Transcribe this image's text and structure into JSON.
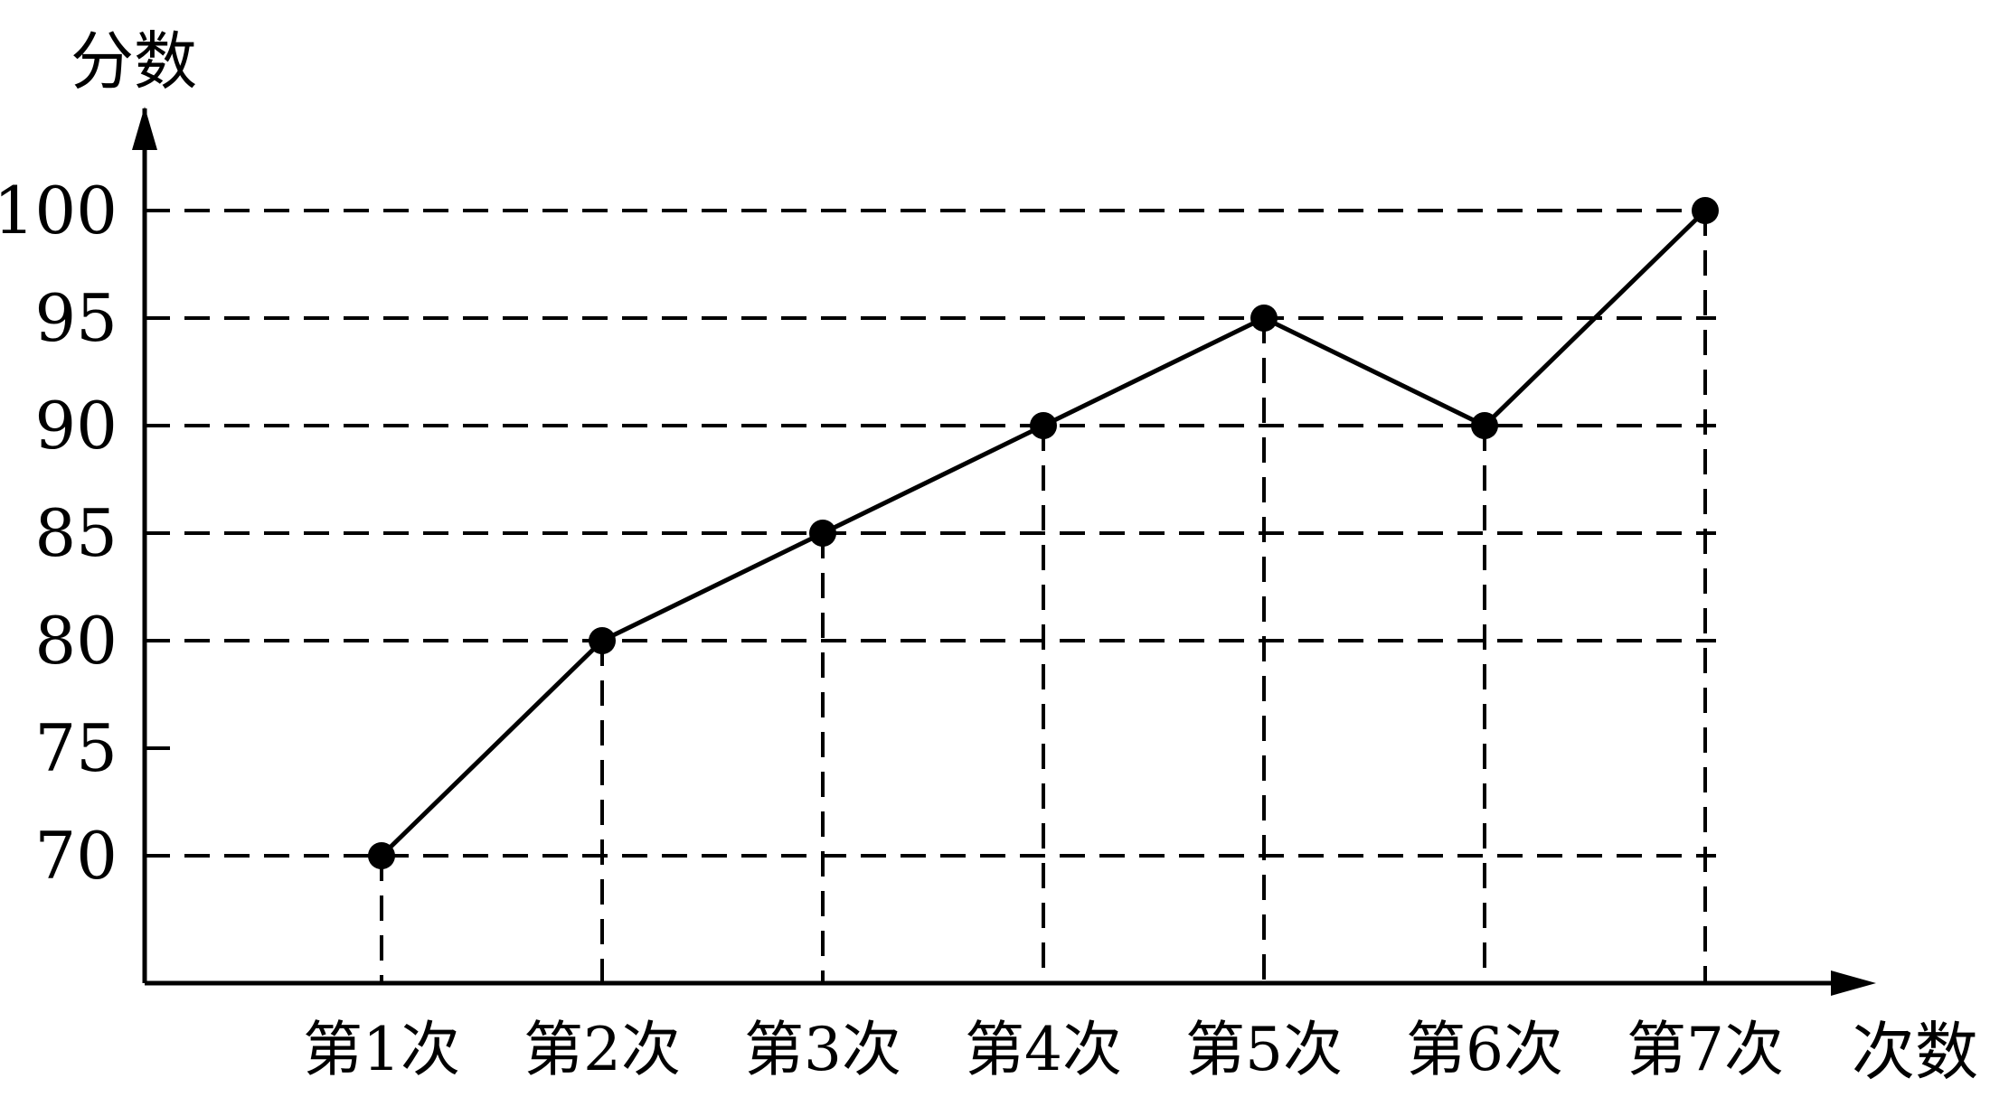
{
  "chart_data": {
    "type": "line",
    "x": [
      "第1次",
      "第2次",
      "第3次",
      "第4次",
      "第5次",
      "第6次",
      "第7次"
    ],
    "series": [
      {
        "values": [
          70,
          80,
          85,
          90,
          95,
          90,
          100
        ]
      }
    ],
    "xlabel": "次数",
    "ylabel": "分数",
    "yticks": [
      70,
      75,
      80,
      85,
      90,
      95,
      100
    ],
    "ylim": [
      70,
      100
    ],
    "grid": true,
    "line_color": "#000000"
  }
}
